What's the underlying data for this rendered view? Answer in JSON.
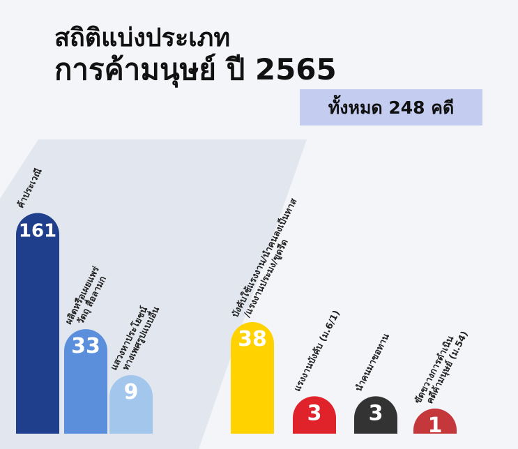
{
  "chart_data": {
    "type": "bar",
    "title": [
      "สถิติแบ่งประเภท",
      "การค้ามนุษย์ ปี 2565"
    ],
    "subtitle": "ทั้งหมด 248 คดี",
    "categories": [
      [
        "ค้าประเวณี"
      ],
      [
        "ผลิตหรือเผยแพร่",
        "วัตถุ สื่อลามก"
      ],
      [
        "แสวงหาประโยชน์",
        "ทางเพศรูปแบบอื่น"
      ],
      [
        "บังคับใช้แรงงาน/นำคนลงเป็นทาส",
        "/แรงงานประมง/ขูดรีด"
      ],
      [
        "แรงงานบังคับ (ม.6/1)"
      ],
      [
        "นำคนมาขอทาน"
      ],
      [
        "ขัดขวางการดำเนิน",
        "คดีค้ามนุษย์ (ม.54)"
      ]
    ],
    "values": [
      161,
      33,
      9,
      38,
      3,
      3,
      1
    ],
    "colors": [
      "#1f3f8c",
      "#5b8fdb",
      "#a3c6ec",
      "#ffd200",
      "#e0222b",
      "#333333",
      "#c4373a"
    ]
  }
}
